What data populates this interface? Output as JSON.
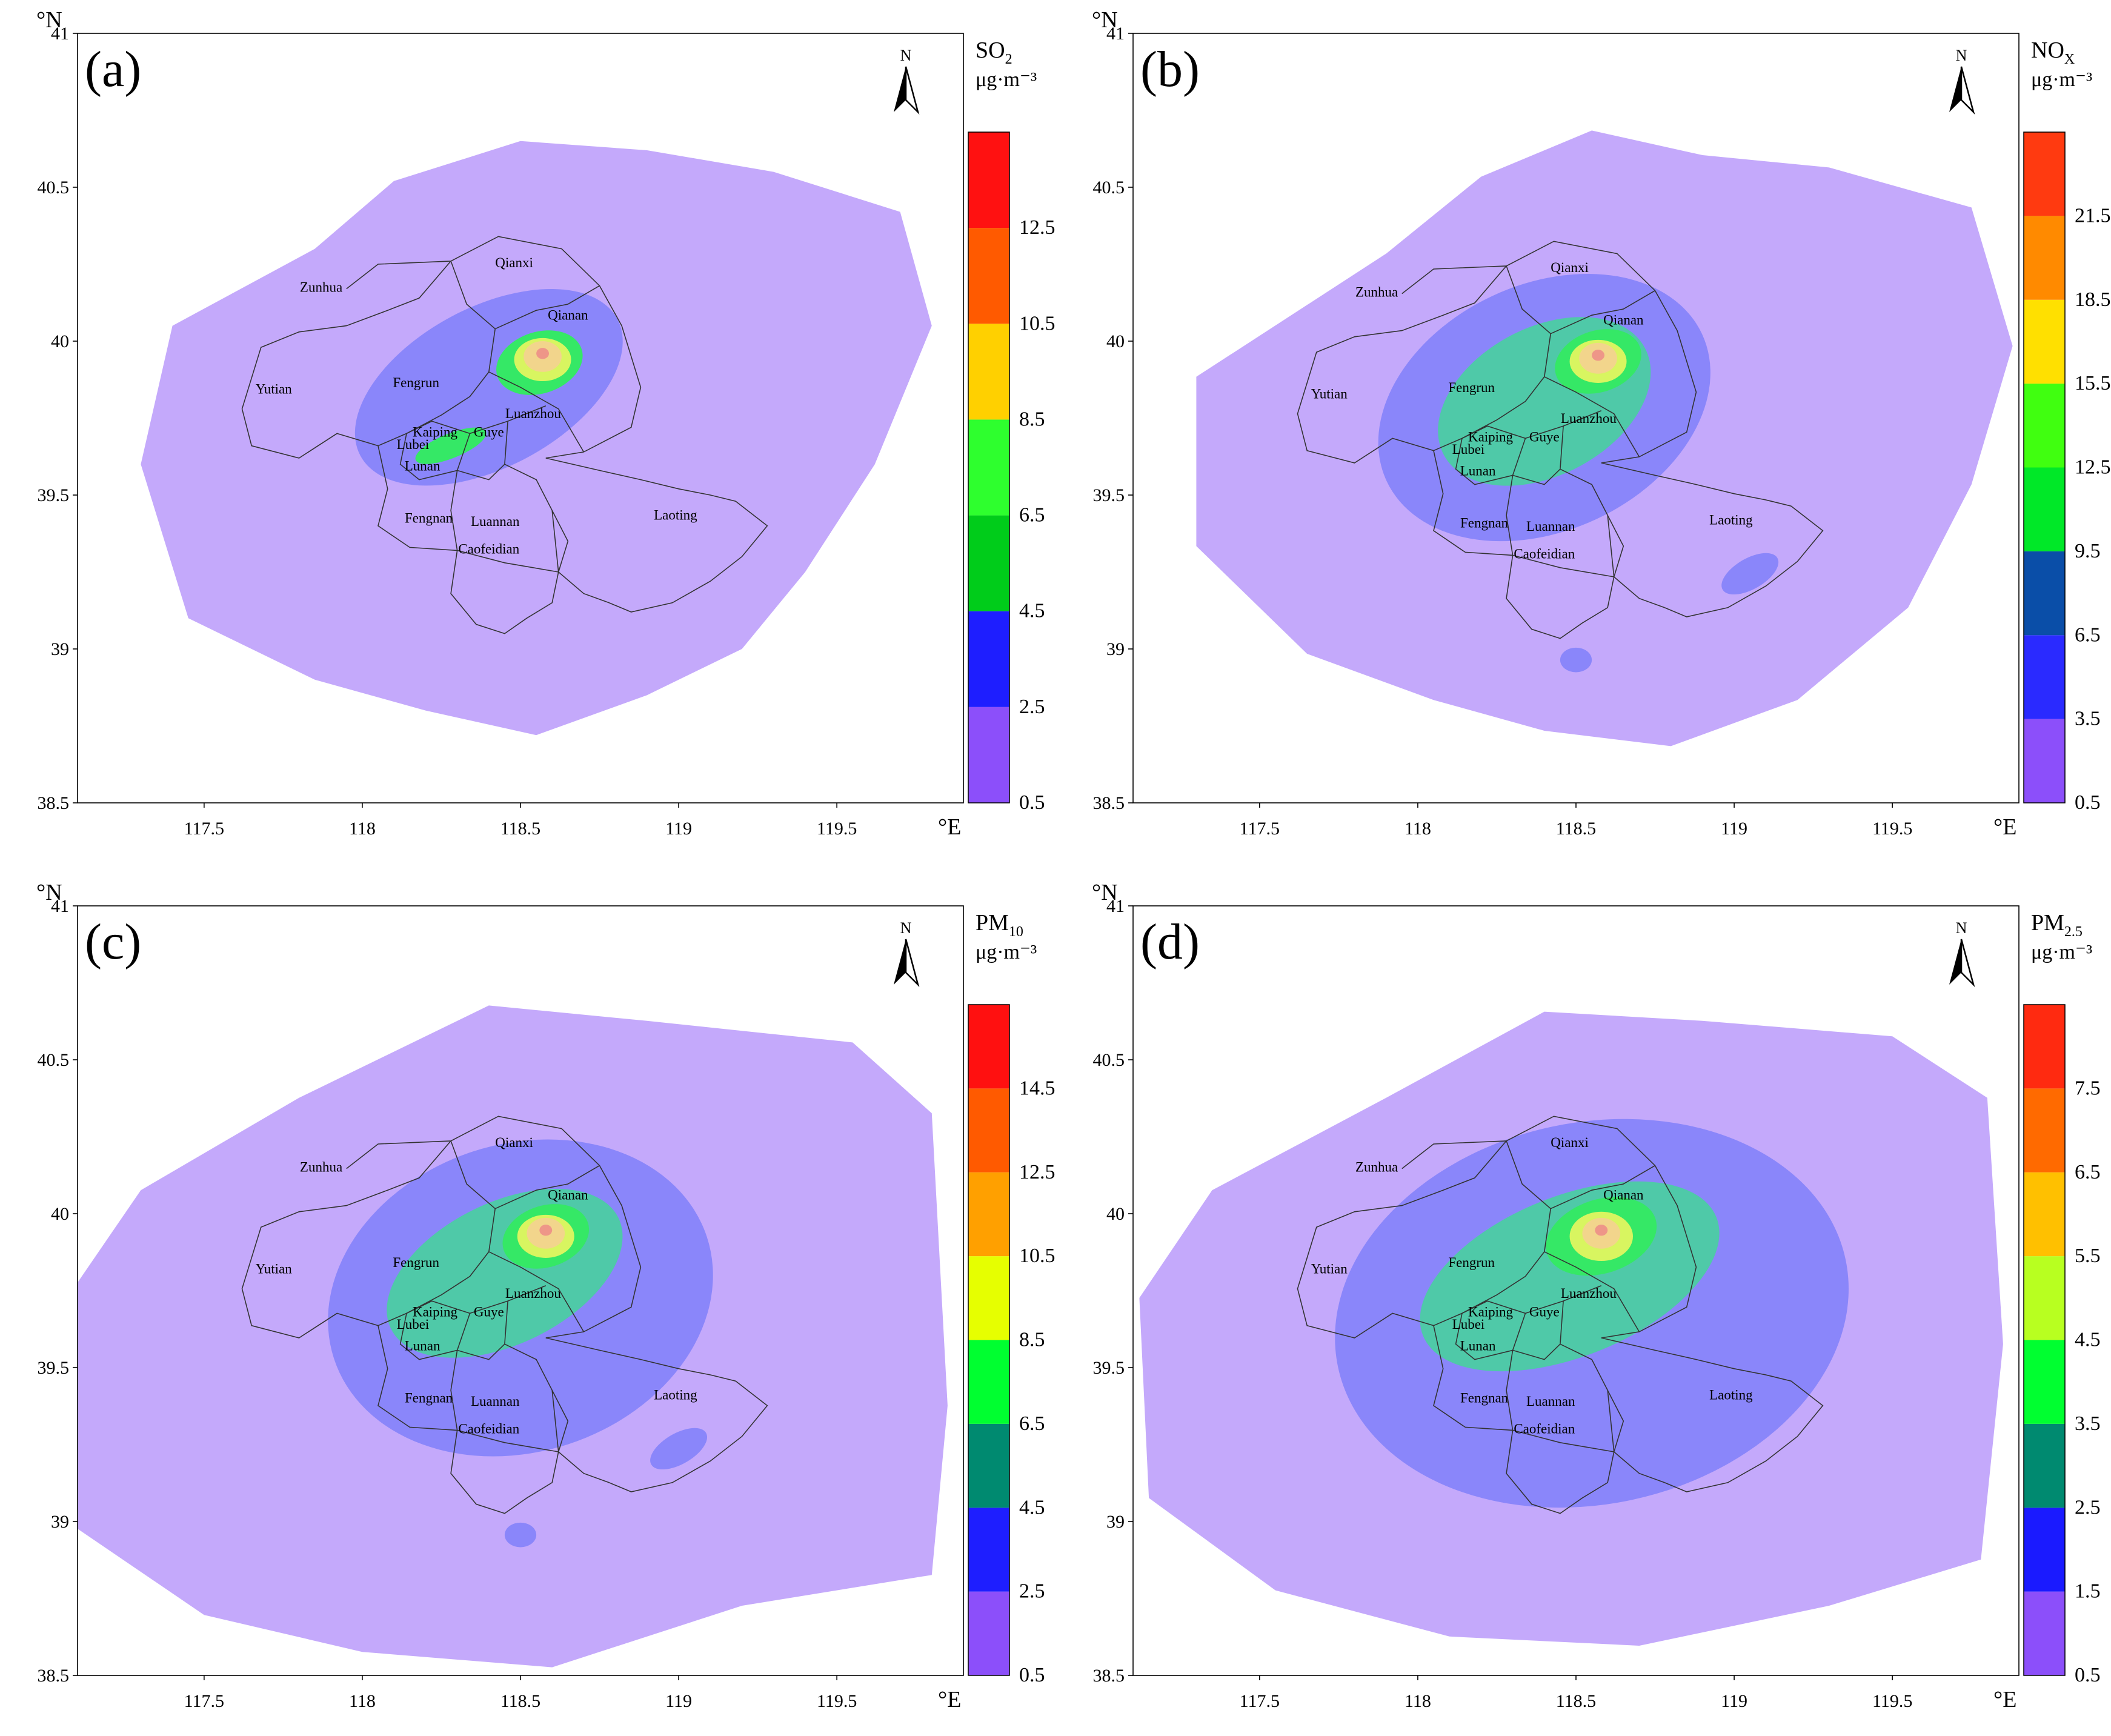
{
  "axis": {
    "lat_unit": "°N",
    "lon_unit": "°E",
    "lat_ticks": [
      "41",
      "40.5",
      "40",
      "39.5",
      "39",
      "38.5"
    ],
    "lon_ticks": [
      "117.5",
      "118",
      "118.5",
      "119",
      "119.5"
    ]
  },
  "north_label": "N",
  "districts": [
    "Qianxi",
    "Zunhua",
    "Qianan",
    "Fengrun",
    "Yutian",
    "Luanzhou",
    "Kaiping",
    "Guye",
    "Lubei",
    "Lunan",
    "Fengnan",
    "Luannan",
    "Laoting",
    "Caofeidian"
  ],
  "palette": {
    "outer": "#c4a9fb",
    "zone2": "#8a86fa",
    "zone3": "#4fc9a8",
    "zone4": "#35e866",
    "zone5": "#d8f560",
    "zone6": "#f2d58c",
    "peak": "#ee9688"
  },
  "panels": [
    {
      "id": "a",
      "label": "(a)",
      "pollutant": "SO",
      "sub": "2",
      "unit": "μg·m⁻³",
      "legend_values": [
        "0.5",
        "2.5",
        "4.5",
        "6.5",
        "8.5",
        "10.5",
        "12.5"
      ],
      "legend_colors": [
        "#8c4ffa",
        "#1e1eff",
        "#00cc1a",
        "#2eff2e",
        "#ffd000",
        "#ff5a00",
        "#ff1111"
      ]
    },
    {
      "id": "b",
      "label": "(b)",
      "pollutant": "NO",
      "sub": "X",
      "unit": "μg·m⁻³",
      "legend_values": [
        "0.5",
        "3.5",
        "6.5",
        "9.5",
        "12.5",
        "15.5",
        "18.5",
        "21.5"
      ],
      "legend_colors": [
        "#8c4ffa",
        "#2a2aff",
        "#0a4ea8",
        "#00e828",
        "#40ff10",
        "#ffe000",
        "#ff8a00",
        "#ff3a10"
      ]
    },
    {
      "id": "c",
      "label": "(c)",
      "pollutant": "PM",
      "sub": "10",
      "unit": "μg·m⁻³",
      "legend_values": [
        "0.5",
        "2.5",
        "4.5",
        "6.5",
        "8.5",
        "10.5",
        "12.5",
        "14.5"
      ],
      "legend_colors": [
        "#8c4ffa",
        "#1e1eff",
        "#008a70",
        "#00ff30",
        "#e6ff00",
        "#ffa000",
        "#ff5a00",
        "#ff1010"
      ]
    },
    {
      "id": "d",
      "label": "(d)",
      "pollutant": "PM",
      "sub": "2.5",
      "unit": "μg·m⁻³",
      "legend_values": [
        "0.5",
        "1.5",
        "2.5",
        "3.5",
        "4.5",
        "5.5",
        "6.5",
        "7.5"
      ],
      "legend_colors": [
        "#8c4ffa",
        "#1a1aff",
        "#008a70",
        "#00ff30",
        "#b8ff20",
        "#ffc000",
        "#ff6a00",
        "#ff2a10"
      ]
    }
  ]
}
